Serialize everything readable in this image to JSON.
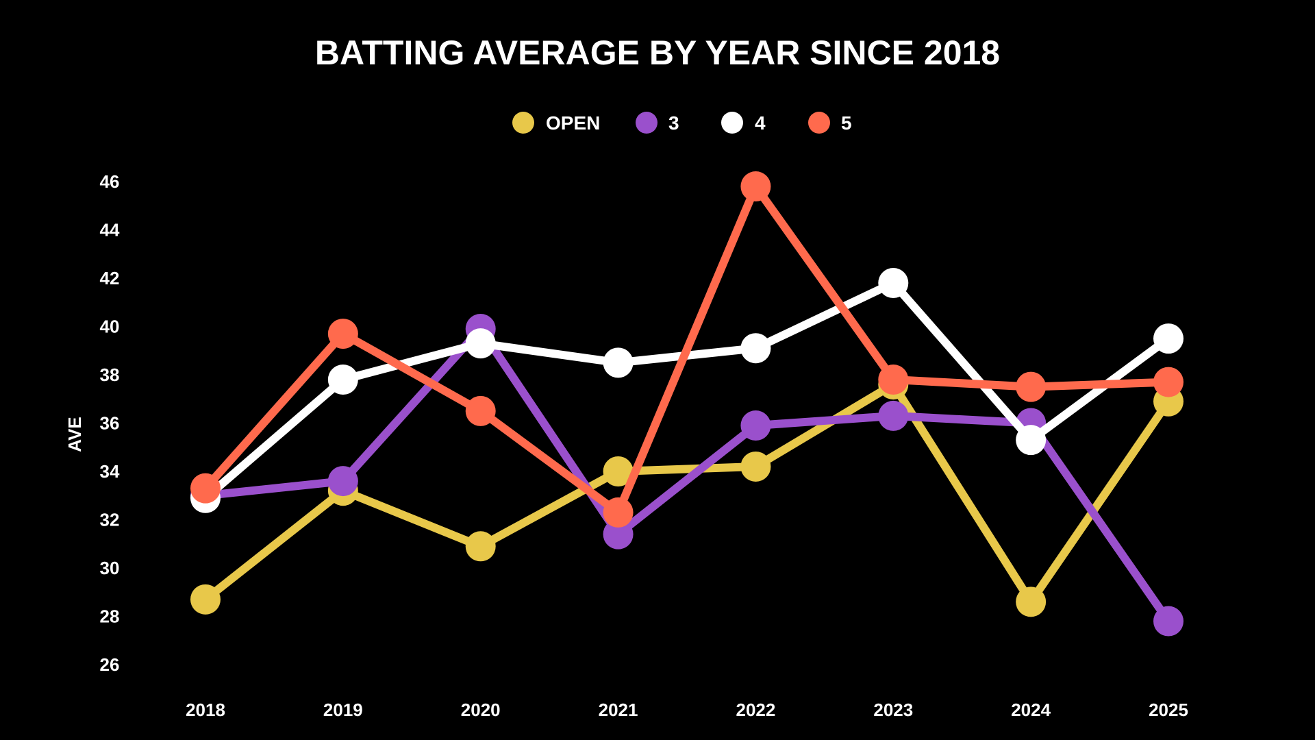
{
  "chart_data": {
    "type": "line",
    "title": "BATTING AVERAGE BY YEAR SINCE 2018",
    "xlabel": "",
    "ylabel": "AVE",
    "categories": [
      "2018",
      "2019",
      "2020",
      "2021",
      "2022",
      "2023",
      "2024",
      "2025"
    ],
    "yticks": [
      26,
      28,
      30,
      32,
      34,
      36,
      38,
      40,
      42,
      44,
      46
    ],
    "ylim": [
      26,
      46
    ],
    "grid": false,
    "legend_position": "top-center",
    "series": [
      {
        "name": "OPEN",
        "color": "#E8C84A",
        "values": [
          28.7,
          33.2,
          30.9,
          34.0,
          34.2,
          37.6,
          28.6,
          36.9
        ]
      },
      {
        "name": "3",
        "color": "#9A50CC",
        "values": [
          33.0,
          33.6,
          39.9,
          31.4,
          35.9,
          36.3,
          36.0,
          27.8
        ]
      },
      {
        "name": "4",
        "color": "#FFFFFF",
        "values": [
          32.9,
          37.8,
          39.3,
          38.5,
          39.1,
          41.8,
          35.3,
          39.5
        ]
      },
      {
        "name": "5",
        "color": "#FF6A4D",
        "values": [
          33.3,
          39.7,
          36.5,
          32.3,
          45.8,
          37.8,
          37.5,
          37.7
        ]
      }
    ]
  }
}
